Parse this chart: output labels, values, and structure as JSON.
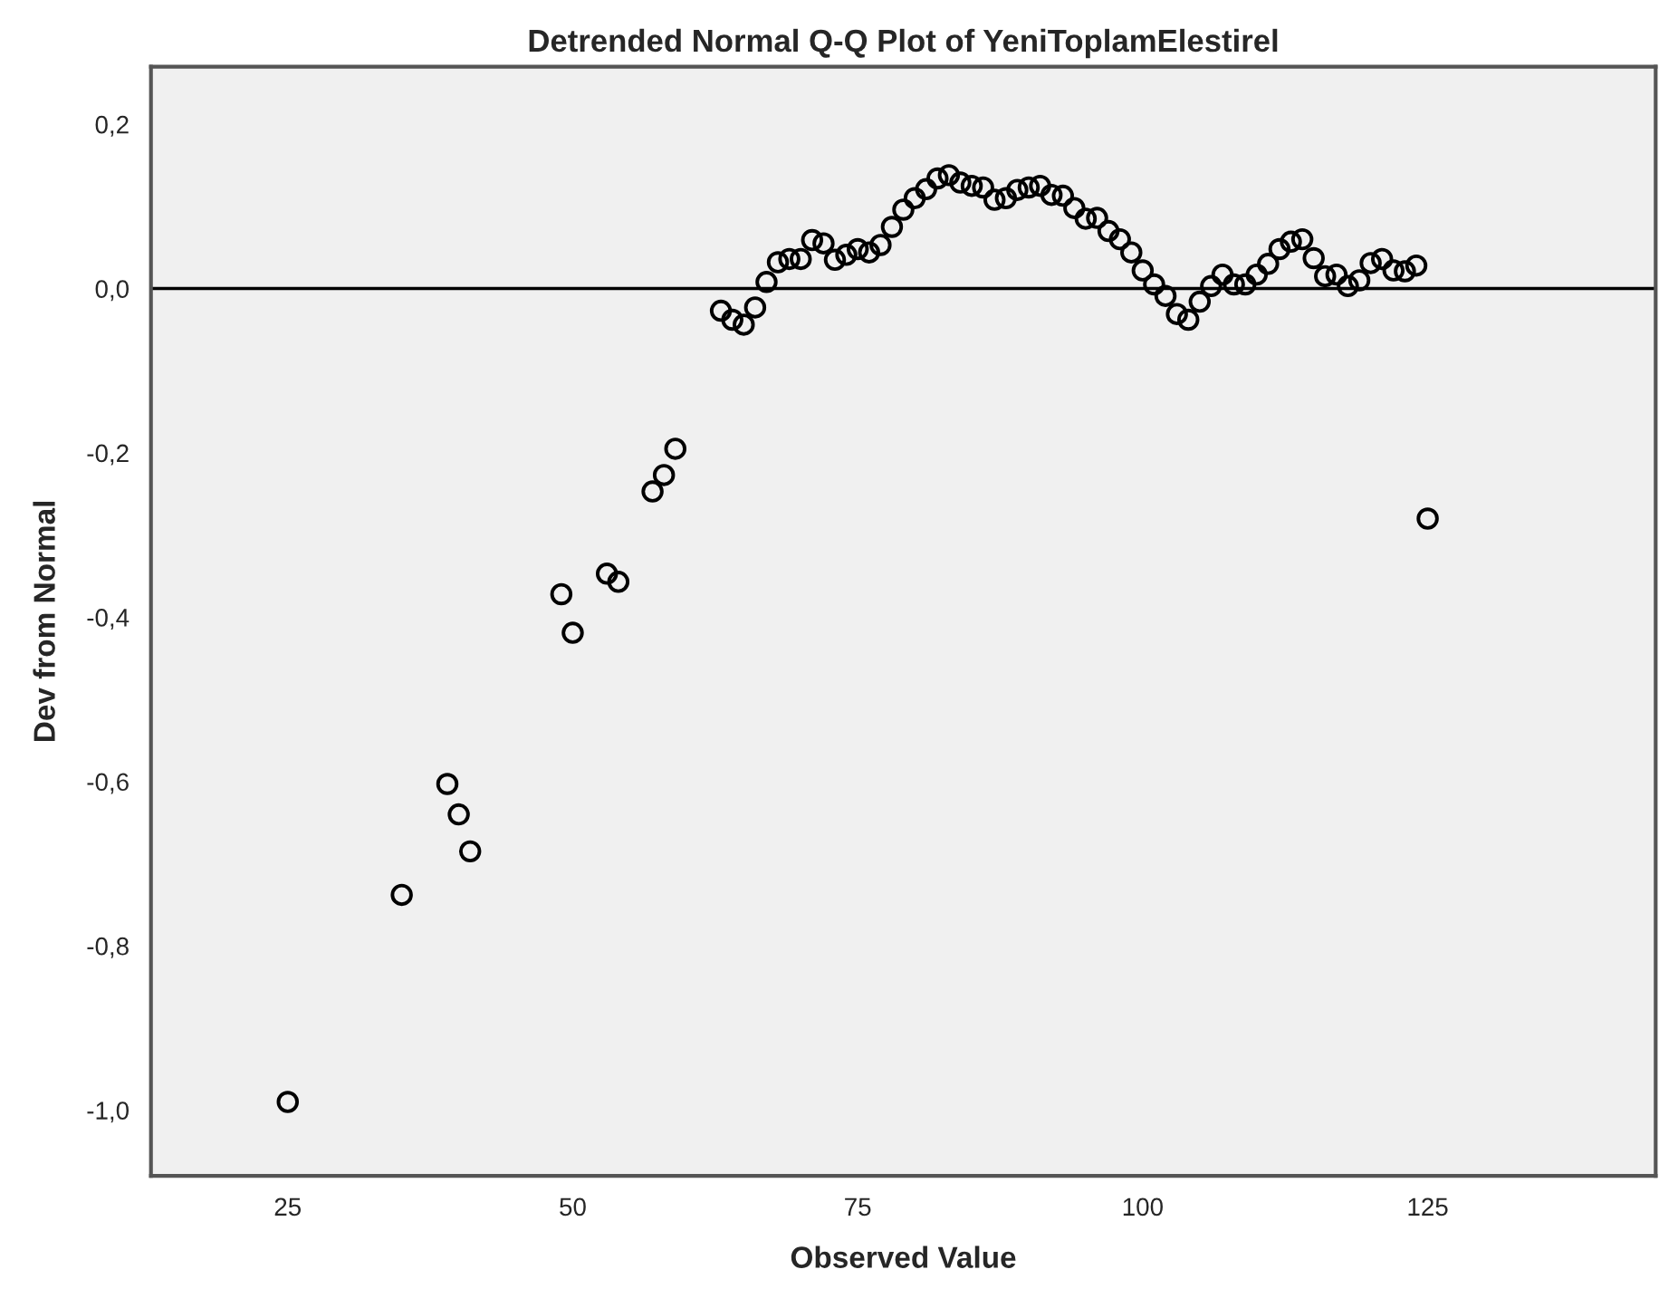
{
  "chart_data": {
    "type": "scatter",
    "title": "Detrended Normal Q-Q Plot of YeniToplamElestirel",
    "xlabel": "Observed Value",
    "ylabel": "Dev from Normal",
    "x": [
      25,
      35,
      39,
      40,
      41,
      49,
      50,
      53,
      54,
      57,
      58,
      59,
      63,
      64,
      65,
      66,
      67,
      68,
      69,
      70,
      71,
      72,
      73,
      74,
      75,
      76,
      77,
      78,
      79,
      80,
      81,
      82,
      83,
      84,
      85,
      86,
      87,
      88,
      89,
      90,
      91,
      92,
      93,
      94,
      95,
      96,
      97,
      98,
      99,
      100,
      101,
      102,
      103,
      104,
      105,
      106,
      107,
      108,
      109,
      110,
      111,
      112,
      113,
      114,
      115,
      116,
      117,
      118,
      119,
      120,
      121,
      122,
      123,
      124,
      125
    ],
    "series": [
      {
        "color": "#000000",
        "values": [
          -0.99,
          -0.738,
          -0.603,
          -0.64,
          -0.685,
          -0.372,
          -0.419,
          -0.347,
          -0.357,
          -0.247,
          -0.227,
          -0.195,
          -0.027,
          -0.038,
          -0.044,
          -0.023,
          0.008,
          0.032,
          0.036,
          0.036,
          0.059,
          0.055,
          0.035,
          0.041,
          0.048,
          0.044,
          0.053,
          0.075,
          0.096,
          0.11,
          0.121,
          0.134,
          0.138,
          0.129,
          0.125,
          0.123,
          0.108,
          0.11,
          0.12,
          0.123,
          0.125,
          0.114,
          0.113,
          0.098,
          0.085,
          0.086,
          0.07,
          0.06,
          0.044,
          0.022,
          0.005,
          -0.009,
          -0.031,
          -0.038,
          -0.016,
          0.003,
          0.017,
          0.005,
          0.005,
          0.017,
          0.03,
          0.048,
          0.057,
          0.06,
          0.037,
          0.015,
          0.017,
          0.003,
          0.01,
          0.031,
          0.036,
          0.022,
          0.021,
          0.028,
          -0.28
        ]
      }
    ],
    "marker": "circle",
    "grid": false,
    "xlim": [
      13,
      145
    ],
    "ylim": [
      -1.08,
      0.27
    ],
    "xticks": [
      25,
      50,
      75,
      100,
      125
    ],
    "yticks": [
      {
        "value": -1.0,
        "label": "-1,0"
      },
      {
        "value": -0.8,
        "label": "-0,8"
      },
      {
        "value": -0.6,
        "label": "-0,6"
      },
      {
        "value": -0.4,
        "label": "-0,4"
      },
      {
        "value": -0.2,
        "label": "-0,2"
      },
      {
        "value": 0.0,
        "label": "0,0"
      },
      {
        "value": 0.2,
        "label": "0,2"
      }
    ],
    "ref_lines": [
      {
        "axis": "y",
        "value": 0,
        "color": "#000000"
      }
    ]
  }
}
